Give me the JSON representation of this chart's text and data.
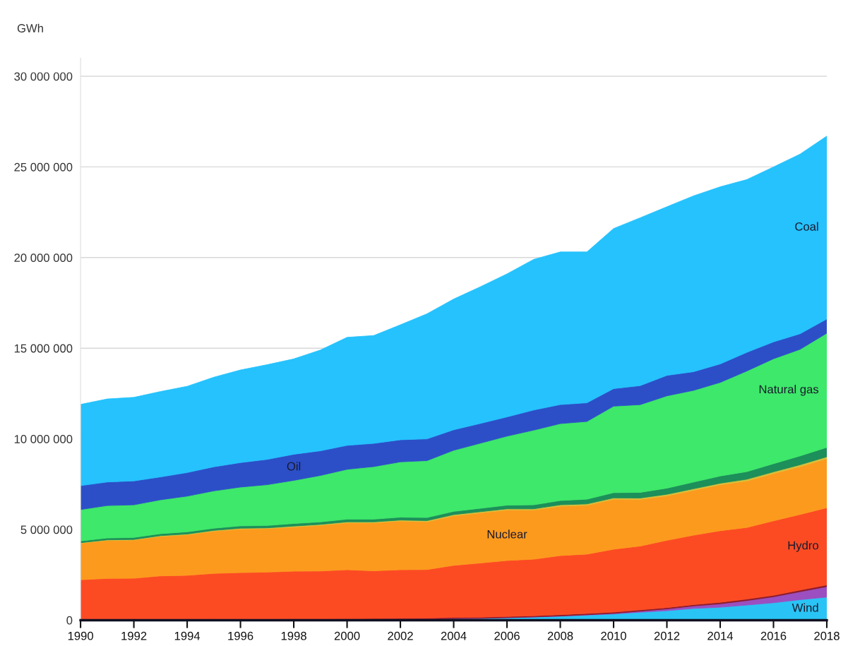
{
  "chart_data": {
    "type": "area",
    "stacked": true,
    "ylabel": "GWh",
    "x": [
      1990,
      1991,
      1992,
      1993,
      1994,
      1995,
      1996,
      1997,
      1998,
      1999,
      2000,
      2001,
      2002,
      2003,
      2004,
      2005,
      2006,
      2007,
      2008,
      2009,
      2010,
      2011,
      2012,
      2013,
      2014,
      2015,
      2016,
      2017,
      2018
    ],
    "xlim": [
      1990,
      2018
    ],
    "xticks": [
      1990,
      1992,
      1994,
      1996,
      1998,
      2000,
      2002,
      2004,
      2006,
      2008,
      2010,
      2012,
      2014,
      2016,
      2018
    ],
    "ylim": [
      0,
      31000000
    ],
    "yticks": [
      {
        "value": 0,
        "label": "0"
      },
      {
        "value": 5000000,
        "label": "5 000 000"
      },
      {
        "value": 10000000,
        "label": "10 000 000"
      },
      {
        "value": 15000000,
        "label": "15 000 000"
      },
      {
        "value": 20000000,
        "label": "20 000 000"
      },
      {
        "value": 25000000,
        "label": "25 000 000"
      },
      {
        "value": 30000000,
        "label": "30 000 000"
      }
    ],
    "grid": "y",
    "legend": false,
    "series": [
      {
        "name": "Wind",
        "color": "#29c4f5",
        "values": [
          0,
          0,
          0,
          10000,
          10000,
          10000,
          10000,
          10000,
          20000,
          20000,
          30000,
          40000,
          50000,
          60000,
          90000,
          100000,
          130000,
          170000,
          220000,
          280000,
          342000,
          437000,
          522000,
          645000,
          712000,
          831000,
          959000,
          1130000,
          1270000
        ]
      },
      {
        "color": "#9b4fc0",
        "values": [
          0,
          0,
          0,
          0,
          0,
          0,
          0,
          0,
          0,
          0,
          0,
          0,
          0,
          0,
          0,
          0,
          10000,
          10000,
          10000,
          20000,
          30000,
          60000,
          100000,
          140000,
          190000,
          250000,
          330000,
          440000,
          580000
        ]
      },
      {
        "color": "#8b1a2b",
        "values": [
          40000,
          40000,
          40000,
          40000,
          40000,
          40000,
          40000,
          40000,
          50000,
          50000,
          50000,
          50000,
          50000,
          50000,
          60000,
          60000,
          60000,
          60000,
          70000,
          70000,
          70000,
          70000,
          70000,
          70000,
          80000,
          80000,
          80000,
          90000,
          90000
        ]
      },
      {
        "name": "Hydro",
        "color": "#fc4b23",
        "values": [
          2190000,
          2260000,
          2270000,
          2390000,
          2420000,
          2530000,
          2570000,
          2600000,
          2630000,
          2640000,
          2700000,
          2630000,
          2680000,
          2680000,
          2870000,
          2990000,
          3090000,
          3120000,
          3260000,
          3270000,
          3470000,
          3520000,
          3710000,
          3830000,
          3950000,
          3950000,
          4110000,
          4170000,
          4260000
        ]
      },
      {
        "name": "Nuclear",
        "color": "#fc9a1e",
        "values": [
          2010000,
          2100000,
          2110000,
          2180000,
          2240000,
          2330000,
          2410000,
          2400000,
          2440000,
          2520000,
          2590000,
          2650000,
          2690000,
          2640000,
          2740000,
          2770000,
          2790000,
          2720000,
          2730000,
          2700000,
          2760000,
          2580000,
          2460000,
          2480000,
          2540000,
          2570000,
          2610000,
          2640000,
          2710000
        ]
      },
      {
        "color": "#d8c03a",
        "values": [
          30000,
          30000,
          30000,
          40000,
          40000,
          40000,
          40000,
          40000,
          50000,
          50000,
          50000,
          50000,
          50000,
          60000,
          60000,
          60000,
          60000,
          60000,
          70000,
          70000,
          70000,
          70000,
          80000,
          80000,
          80000,
          90000,
          90000,
          100000,
          100000
        ]
      },
      {
        "color": "#1c8f5a",
        "values": [
          100000,
          100000,
          110000,
          110000,
          120000,
          120000,
          130000,
          130000,
          140000,
          140000,
          150000,
          150000,
          160000,
          170000,
          180000,
          190000,
          200000,
          220000,
          240000,
          260000,
          290000,
          310000,
          340000,
          370000,
          400000,
          420000,
          450000,
          490000,
          520000
        ]
      },
      {
        "name": "Natural gas",
        "color": "#3ee86a",
        "values": [
          1730000,
          1790000,
          1800000,
          1870000,
          1970000,
          2060000,
          2140000,
          2250000,
          2380000,
          2560000,
          2750000,
          2900000,
          3050000,
          3140000,
          3370000,
          3590000,
          3810000,
          4120000,
          4240000,
          4290000,
          4770000,
          4840000,
          5090000,
          5060000,
          5160000,
          5550000,
          5790000,
          5880000,
          6300000
        ]
      },
      {
        "name": "Oil",
        "color": "#2c4fc8",
        "values": [
          1320000,
          1300000,
          1320000,
          1260000,
          1300000,
          1330000,
          1350000,
          1400000,
          1440000,
          1360000,
          1320000,
          1280000,
          1220000,
          1200000,
          1130000,
          1090000,
          1060000,
          1110000,
          1050000,
          1030000,
          970000,
          1050000,
          1130000,
          1030000,
          1020000,
          1030000,
          930000,
          860000,
          780000
        ]
      },
      {
        "name": "Coal",
        "color": "#25c2fd",
        "values": [
          4480000,
          4580000,
          4610000,
          4710000,
          4760000,
          4940000,
          5110000,
          5220000,
          5260000,
          5560000,
          5960000,
          5950000,
          6340000,
          6900000,
          7210000,
          7540000,
          7890000,
          8310000,
          8420000,
          8320000,
          8830000,
          9260000,
          9300000,
          9700000,
          9770000,
          9530000,
          9650000,
          9910000,
          10090000
        ]
      }
    ]
  }
}
